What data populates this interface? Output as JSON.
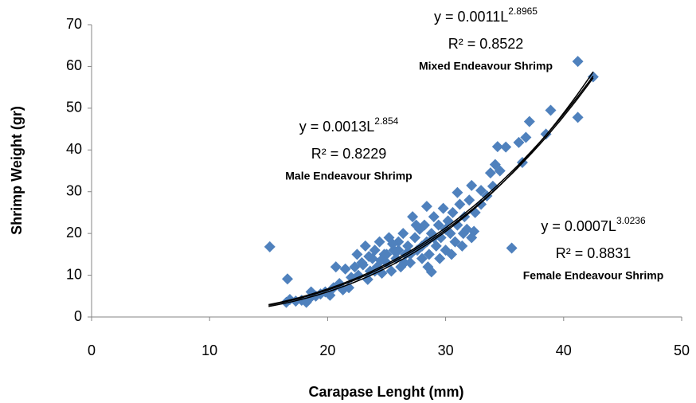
{
  "chart_data": {
    "type": "scatter",
    "xlabel": "Carapase Lenght (mm)",
    "ylabel": "Shrimp Weight (gr)",
    "xlim": [
      0,
      50
    ],
    "xticks": [
      0,
      10,
      20,
      30,
      40,
      50
    ],
    "ylim": [
      0,
      70
    ],
    "yticks": [
      0,
      10,
      20,
      30,
      40,
      50,
      60,
      70
    ],
    "grid": false,
    "fit_xlim": [
      15,
      42.5
    ],
    "series": [
      {
        "color": "#4f81bd",
        "x": [
          15.1,
          16.6,
          35.6,
          41.2,
          42.5,
          41.2,
          38.9,
          37.1,
          36.8,
          38.5,
          34.4,
          35.1,
          36.2,
          36.5,
          34.2,
          34.6,
          33.8,
          34,
          33,
          32.2,
          31,
          32.4,
          28.8,
          28.4,
          16.5,
          16.8,
          17.3,
          17.8,
          18.2,
          18.5,
          18.6,
          19,
          19.4,
          19.8,
          20.2,
          20.5,
          20.7,
          21,
          21.3,
          21.5,
          21.8,
          22,
          22.3,
          22.6,
          22.9,
          23.2,
          23.4,
          23.6,
          23.8,
          24,
          24.2,
          24.4,
          24.6,
          24.8,
          25,
          25.2,
          25.4,
          25.6,
          25.8,
          26,
          26.2,
          26.4,
          26.6,
          26.8,
          27,
          27.2,
          27.4,
          27.6,
          27.8,
          28,
          28.2,
          28.4,
          28.6,
          28.8,
          29,
          29.2,
          29.4,
          29.6,
          29.8,
          30,
          30.2,
          30.4,
          30.6,
          30.8,
          31,
          31.2,
          31.4,
          31.6,
          31.8,
          32,
          32.2,
          32.5,
          33,
          33.5,
          22.5,
          23,
          24.5,
          25.5,
          26.5,
          27.5,
          28.5,
          29.5,
          30.5,
          31.5,
          27,
          28,
          29,
          30,
          26,
          25,
          24,
          23.5
        ],
        "y": [
          16.8,
          9.1,
          16.5,
          61.2,
          57.5,
          47.8,
          49.5,
          46.8,
          43,
          43.8,
          40.8,
          40.7,
          41.8,
          37,
          36.5,
          35,
          34.5,
          31.3,
          30.3,
          31.5,
          29.8,
          20.5,
          10.8,
          26.5,
          3.5,
          4.2,
          3.8,
          4,
          3.5,
          4.5,
          6,
          5,
          5.5,
          6,
          5.2,
          7,
          12,
          8,
          6.5,
          11.5,
          7,
          9.5,
          12,
          10,
          13,
          17,
          9,
          11,
          14,
          16,
          12,
          18,
          10.5,
          15,
          13,
          19,
          11,
          16,
          14,
          18,
          12,
          20,
          15,
          17,
          13,
          24,
          19,
          16,
          21,
          14,
          22,
          18,
          15,
          20,
          24,
          17,
          22,
          19,
          26,
          16,
          23,
          20,
          25,
          18,
          22,
          27,
          17,
          24,
          21,
          28,
          19,
          25,
          27,
          29,
          15,
          12.5,
          13.5,
          17.5,
          13,
          22,
          12,
          14,
          15,
          20,
          15,
          17,
          19,
          21,
          16,
          15,
          11,
          14.5
        ]
      }
    ],
    "annotations": [
      {
        "prefix": "y = ",
        "coefficient": 0.0011,
        "variable": "L",
        "exponent": 2.8965,
        "r2_prefix": "R² = ",
        "r2": 0.8522,
        "name": "Mixed Endeavour Shrimp"
      },
      {
        "prefix": "y = ",
        "coefficient": 0.0013,
        "variable": "L",
        "exponent": 2.854,
        "r2_prefix": "R² = ",
        "r2": 0.8229,
        "name": "Male Endeavour Shrimp"
      },
      {
        "prefix": "y = ",
        "coefficient": 0.0007,
        "variable": "L",
        "exponent": 3.0236,
        "r2_prefix": "R² = ",
        "r2": 0.8831,
        "name": "Female Endeavour Shrimp"
      }
    ]
  }
}
